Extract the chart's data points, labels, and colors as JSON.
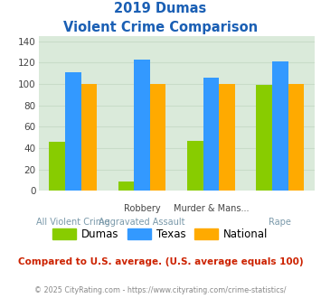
{
  "title_line1": "2019 Dumas",
  "title_line2": "Violent Crime Comparison",
  "cat_labels_top": [
    "",
    "Robbery",
    "Murder & Mans...",
    ""
  ],
  "cat_labels_bot": [
    "All Violent Crime",
    "Aggravated Assault",
    "",
    "Rape"
  ],
  "groups": [
    {
      "label": "Dumas",
      "color": "#88cc00",
      "values": [
        46,
        9,
        47,
        99
      ]
    },
    {
      "label": "Texas",
      "color": "#3399ff",
      "values": [
        111,
        123,
        106,
        121
      ]
    },
    {
      "label": "National",
      "color": "#ffaa00",
      "values": [
        100,
        100,
        100,
        100
      ]
    }
  ],
  "ylim": [
    0,
    145
  ],
  "yticks": [
    0,
    20,
    40,
    60,
    80,
    100,
    120,
    140
  ],
  "grid_color": "#c8dcc8",
  "bg_color": "#daeada",
  "title_color": "#1a5fb4",
  "footer_text": "Compared to U.S. average. (U.S. average equals 100)",
  "footer_color": "#cc2200",
  "copyright_text": "© 2025 CityRating.com - https://www.cityrating.com/crime-statistics/",
  "copyright_color": "#888888",
  "bar_width": 0.23
}
